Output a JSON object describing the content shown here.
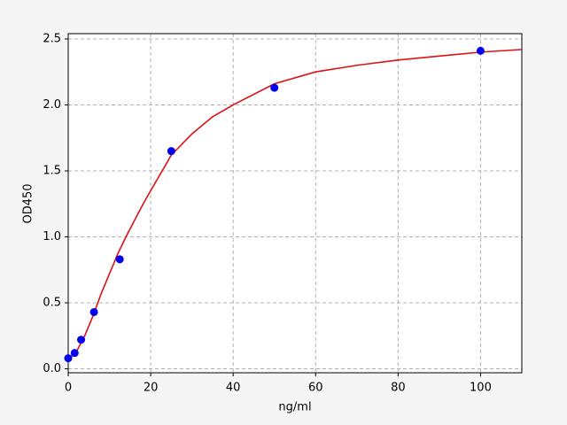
{
  "chart_data": {
    "type": "scatter",
    "x_label": "ng/ml",
    "y_label": "OD450",
    "xlim": [
      0,
      110
    ],
    "ylim": [
      -0.03,
      2.54
    ],
    "xticks": [
      0,
      20,
      40,
      60,
      80,
      100
    ],
    "yticks": [
      {
        "value": 0,
        "label": "0.0"
      },
      {
        "value": 0.5,
        "label": "0.5"
      },
      {
        "value": 1,
        "label": "1.0"
      },
      {
        "value": 1.5,
        "label": "1.5"
      },
      {
        "value": 2,
        "label": "2.0"
      },
      {
        "value": 2.5,
        "label": "2.5"
      }
    ],
    "grid": true,
    "points": {
      "color": "#0000ee",
      "x": [
        0,
        1.56,
        3.125,
        6.25,
        12.5,
        25,
        50,
        100
      ],
      "values": [
        0.08,
        0.12,
        0.22,
        0.43,
        0.83,
        1.65,
        2.13,
        2.41
      ]
    },
    "curve": {
      "color": "#dd1111",
      "x": [
        0,
        2,
        4,
        6,
        8,
        10,
        12,
        14,
        16,
        18,
        20,
        25,
        30,
        35,
        40,
        50,
        60,
        70,
        80,
        90,
        100,
        110
      ],
      "values": [
        0.07,
        0.13,
        0.25,
        0.4,
        0.57,
        0.72,
        0.87,
        1.0,
        1.12,
        1.24,
        1.35,
        1.62,
        1.78,
        1.91,
        2.0,
        2.16,
        2.25,
        2.3,
        2.34,
        2.37,
        2.4,
        2.42
      ]
    }
  }
}
